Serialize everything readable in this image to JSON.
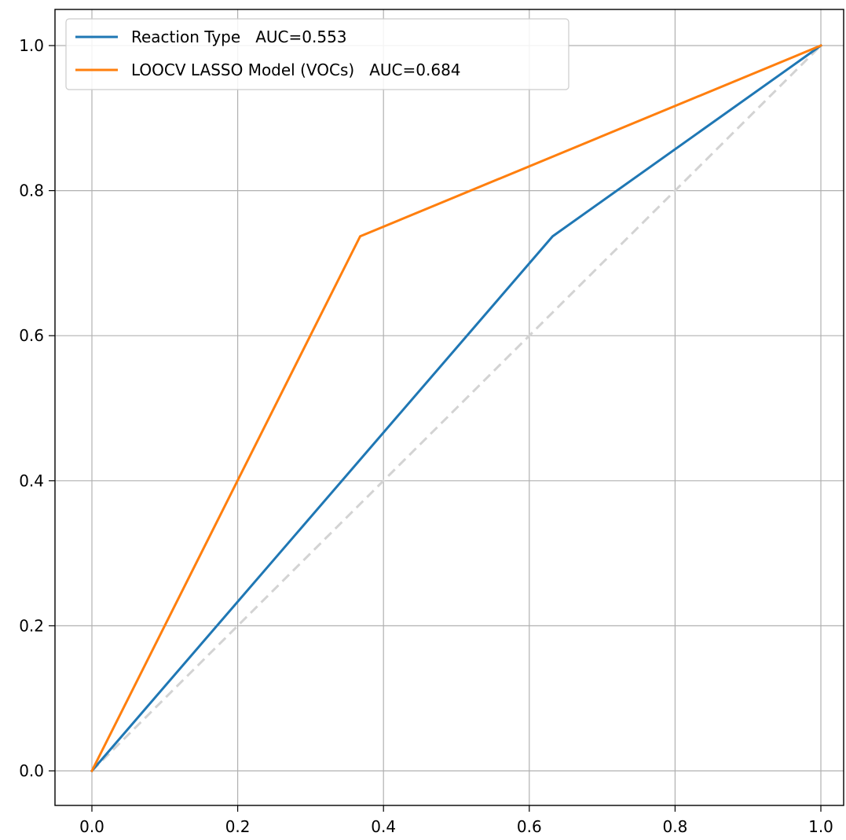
{
  "chart_data": {
    "type": "line",
    "title": "",
    "xlabel": "",
    "ylabel": "",
    "xlim": [
      -0.05,
      1.0
    ],
    "ylim": [
      -0.05,
      1.05
    ],
    "grid": true,
    "legend_position": "top-left",
    "x_ticks": [
      "0.0",
      "0.2",
      "0.4",
      "0.6",
      "0.8",
      "1.0"
    ],
    "y_ticks": [
      "0.0",
      "0.2",
      "0.4",
      "0.6",
      "0.8",
      "1.0"
    ],
    "series": [
      {
        "name": "Reaction Type   AUC=0.553",
        "color": "#1f77b4",
        "x": [
          0.0,
          0.632,
          1.0
        ],
        "y": [
          0.0,
          0.737,
          1.0
        ]
      },
      {
        "name": "LOOCV LASSO Model (VOCs)   AUC=0.684",
        "color": "#ff7f0e",
        "x": [
          0.0,
          0.368,
          1.0
        ],
        "y": [
          0.0,
          0.737,
          1.0
        ]
      }
    ],
    "reference_line": {
      "x": [
        0.0,
        1.0
      ],
      "y": [
        0.0,
        1.0
      ],
      "color": "#d3d3d3",
      "style": "dashed"
    }
  }
}
